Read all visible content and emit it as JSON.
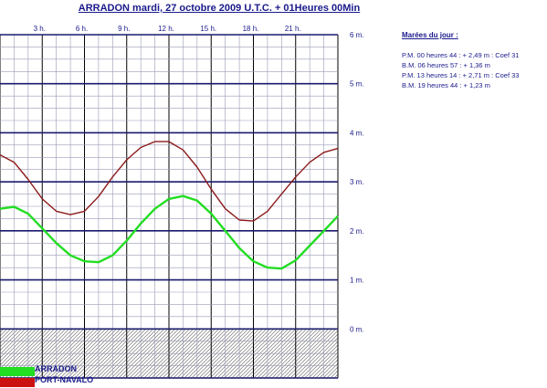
{
  "chart_data": {
    "type": "line",
    "title": "ARRADON mardi, 27 octobre 2009 U.T.C. + 01Heures 00Min",
    "xlabel": "",
    "ylabel": "",
    "x_ticks": [
      "3 h.",
      "6 h.",
      "9 h.",
      "12 h.",
      "15 h.",
      "18 h.",
      "21 h."
    ],
    "x_tick_hours": [
      3,
      6,
      9,
      12,
      15,
      18,
      21
    ],
    "xlim": [
      0,
      24
    ],
    "y_ticks": [
      "0 m.",
      "1 m.",
      "2 m.",
      "3 m.",
      "4 m.",
      "5 m.",
      "6 m."
    ],
    "ylim": [
      -1,
      6
    ],
    "grid": true,
    "legend_position": "bottom-left",
    "series": [
      {
        "name": "ARRADON",
        "color": "#22dd22",
        "points": [
          [
            0,
            2.45
          ],
          [
            1,
            2.49
          ],
          [
            2,
            2.35
          ],
          [
            3,
            2.05
          ],
          [
            4,
            1.75
          ],
          [
            5,
            1.5
          ],
          [
            6,
            1.38
          ],
          [
            7,
            1.36
          ],
          [
            8,
            1.5
          ],
          [
            9,
            1.8
          ],
          [
            10,
            2.15
          ],
          [
            11,
            2.45
          ],
          [
            12,
            2.65
          ],
          [
            13,
            2.71
          ],
          [
            14,
            2.62
          ],
          [
            15,
            2.35
          ],
          [
            16,
            2.0
          ],
          [
            17,
            1.65
          ],
          [
            18,
            1.38
          ],
          [
            19,
            1.25
          ],
          [
            20,
            1.23
          ],
          [
            21,
            1.4
          ],
          [
            22,
            1.7
          ],
          [
            23,
            2.0
          ],
          [
            24,
            2.3
          ]
        ]
      },
      {
        "name": "PORT-NAVALO",
        "color": "#8b1a1a",
        "points": [
          [
            0,
            3.55
          ],
          [
            1,
            3.4
          ],
          [
            2,
            3.05
          ],
          [
            3,
            2.65
          ],
          [
            4,
            2.4
          ],
          [
            5,
            2.33
          ],
          [
            6,
            2.4
          ],
          [
            7,
            2.7
          ],
          [
            8,
            3.1
          ],
          [
            9,
            3.45
          ],
          [
            10,
            3.7
          ],
          [
            11,
            3.82
          ],
          [
            12,
            3.82
          ],
          [
            13,
            3.65
          ],
          [
            14,
            3.3
          ],
          [
            15,
            2.85
          ],
          [
            16,
            2.45
          ],
          [
            17,
            2.22
          ],
          [
            18,
            2.2
          ],
          [
            19,
            2.4
          ],
          [
            20,
            2.75
          ],
          [
            21,
            3.1
          ],
          [
            22,
            3.4
          ],
          [
            23,
            3.6
          ],
          [
            24,
            3.68
          ]
        ]
      }
    ]
  },
  "tides": {
    "header": "Marées du jour :",
    "rows": [
      "P.M. 00 heures 44 : + 2,49 m : Coef 31",
      "B.M. 06 heures 57 : + 1,36 m",
      "P.M. 13 heures 14 : + 2,71 m : Coef 33",
      "B.M. 19 heures 44 : + 1,23 m"
    ]
  },
  "legend": {
    "items": [
      {
        "label": "ARRADON",
        "color": "#22dd22"
      },
      {
        "label": "PORT-NAVALO",
        "color": "#cc1111"
      }
    ]
  }
}
